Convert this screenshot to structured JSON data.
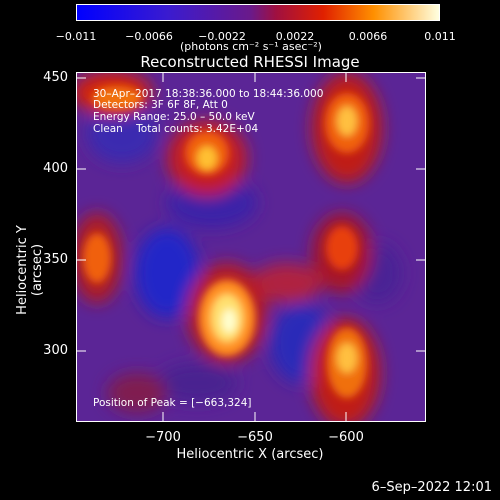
{
  "colorbar": {
    "ticks": [
      "−0.011",
      "−0.0066",
      "−0.0022",
      "0.0022",
      "0.0066",
      "0.011"
    ],
    "unit_label": "(photons cm⁻² s⁻¹ asec⁻²)"
  },
  "title": "Reconstructed RHESSI Image",
  "annotations": {
    "time_range": "30–Apr–2017 18:38:36.000 to 18:44:36.000",
    "detectors": "Detectors: 3F 6F 8F, Att 0",
    "energy": "Energy Range: 25.0 – 50.0 keV",
    "clean": "Clean    Total counts: 3.42E+04",
    "peak": "Position of Peak = [−663,324]"
  },
  "axes": {
    "xlabel": "Heliocentric X (arcsec)",
    "ylabel": "Heliocentric Y (arcsec)",
    "xticks": [
      "−700",
      "−650",
      "−600"
    ],
    "yticks": [
      "450",
      "400",
      "350",
      "300"
    ]
  },
  "footer": "6–Sep–2022 12:01"
}
